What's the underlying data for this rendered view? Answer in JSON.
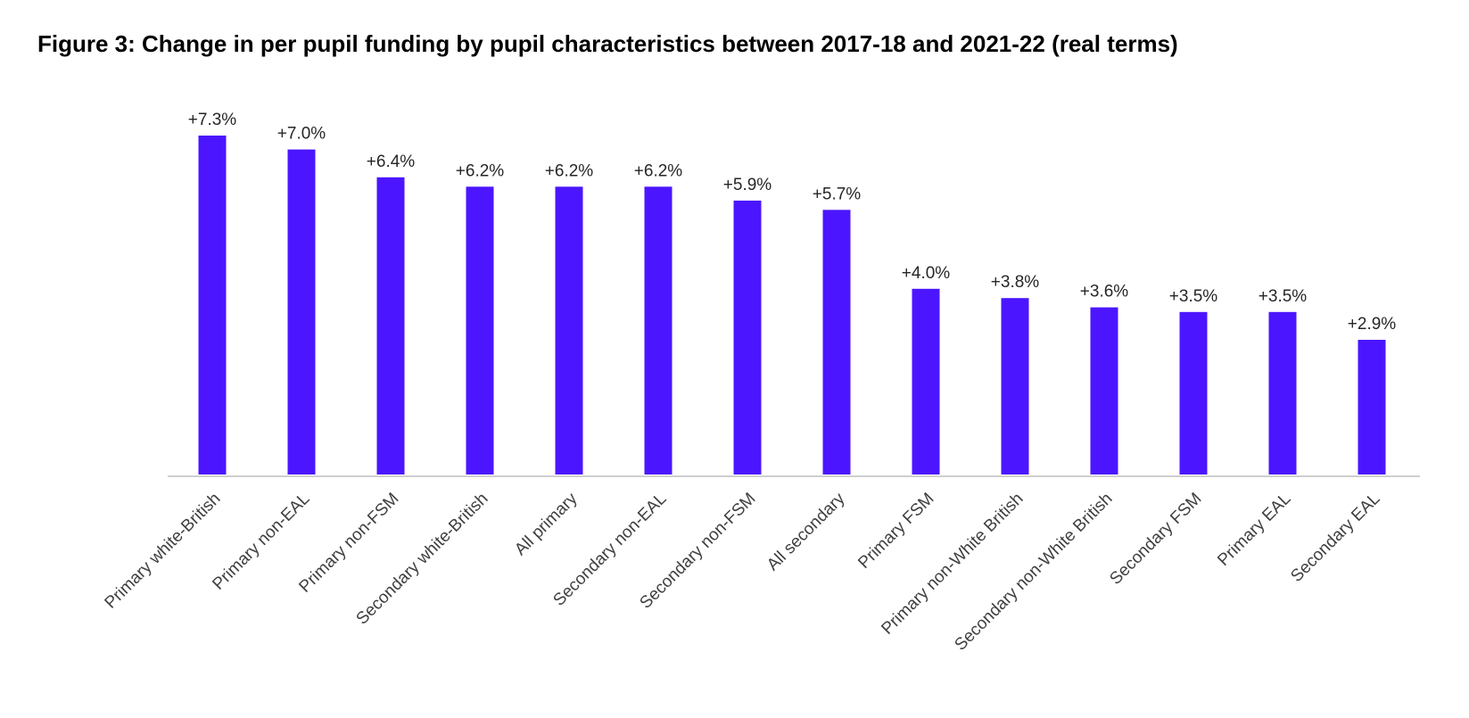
{
  "chart_data": {
    "type": "bar",
    "title": "Figure 3: Change in per pupil funding by pupil characteristics between 2017-18 and 2021-22 (real terms)",
    "categories": [
      "Primary white-British",
      "Primary non-EAL",
      "Primary non-FSM",
      "Secondary white-British",
      "All primary",
      "Secondary non-EAL",
      "Secondary non-FSM",
      "All secondary",
      "Primary FSM",
      "Primary non-White British",
      "Secondary non-White British",
      "Secondary FSM",
      "Primary EAL",
      "Secondary EAL"
    ],
    "values": [
      7.3,
      7.0,
      6.4,
      6.2,
      6.2,
      6.2,
      5.9,
      5.7,
      4.0,
      3.8,
      3.6,
      3.5,
      3.5,
      2.9
    ],
    "data_labels": [
      "+7.3%",
      "+7.0%",
      "+6.4%",
      "+6.2%",
      "+6.2%",
      "+6.2%",
      "+5.9%",
      "+5.7%",
      "+4.0%",
      "+3.8%",
      "+3.6%",
      "+3.5%",
      "+3.5%",
      "+2.9%"
    ],
    "ylim": [
      0,
      7.3
    ],
    "grid": false,
    "legend": "none",
    "bar_color": "#4B16FF",
    "axis_color": "#BFBFBF"
  }
}
